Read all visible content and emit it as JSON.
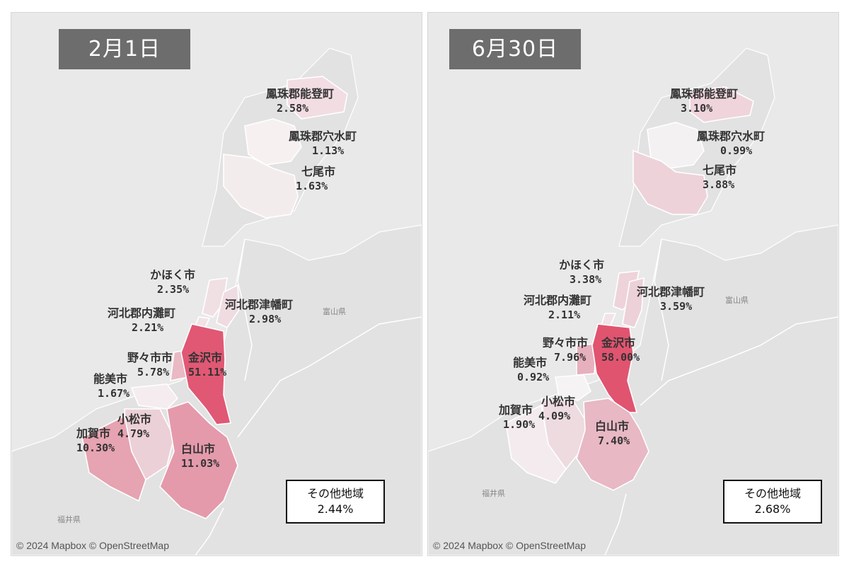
{
  "panels": [
    {
      "date": "2月1日",
      "regions": [
        {
          "name": "鳳珠郡能登町",
          "pct": "2.58%",
          "color": "#f2dde2"
        },
        {
          "name": "鳳珠郡穴水町",
          "pct": "1.13%",
          "color": "#f6f0f1"
        },
        {
          "name": "七尾市",
          "pct": "1.63%",
          "color": "#f3eced"
        },
        {
          "name": "かほく市",
          "pct": "2.35%",
          "color": "#f0e0e4"
        },
        {
          "name": "河北郡津幡町",
          "pct": "2.98%",
          "color": "#efdce1"
        },
        {
          "name": "河北郡内灘町",
          "pct": "2.21%",
          "color": "#f1e2e6"
        },
        {
          "name": "野々市市",
          "pct": "5.78%",
          "color": "#e9b9c4"
        },
        {
          "name": "金沢市",
          "pct": "51.11%",
          "color": "#e05874"
        },
        {
          "name": "能美市",
          "pct": "1.67%",
          "color": "#f4ecee"
        },
        {
          "name": "小松市",
          "pct": "4.79%",
          "color": "#ecd0d7"
        },
        {
          "name": "加賀市",
          "pct": "10.30%",
          "color": "#e6a3b1"
        },
        {
          "name": "白山市",
          "pct": "11.03%",
          "color": "#e49aab"
        }
      ],
      "other_label": "その他地域",
      "other_pct": "2.44%",
      "pref_labels": [
        "富山県",
        "福井県"
      ],
      "attribution": "© 2024 Mapbox © OpenStreetMap"
    },
    {
      "date": "6月30日",
      "regions": [
        {
          "name": "鳳珠郡能登町",
          "pct": "3.10%",
          "color": "#efd4db"
        },
        {
          "name": "鳳珠郡穴水町",
          "pct": "0.99%",
          "color": "#f4f1f2"
        },
        {
          "name": "七尾市",
          "pct": "3.88%",
          "color": "#edd2d9"
        },
        {
          "name": "かほく市",
          "pct": "3.38%",
          "color": "#eed3da"
        },
        {
          "name": "河北郡津幡町",
          "pct": "3.59%",
          "color": "#edd1d8"
        },
        {
          "name": "河北郡内灘町",
          "pct": "2.11%",
          "color": "#f1e3e7"
        },
        {
          "name": "野々市市",
          "pct": "7.96%",
          "color": "#e7b0bd"
        },
        {
          "name": "金沢市",
          "pct": "58.00%",
          "color": "#e0546f"
        },
        {
          "name": "能美市",
          "pct": "0.92%",
          "color": "#f5f3f4"
        },
        {
          "name": "小松市",
          "pct": "4.09%",
          "color": "#eddbe0"
        },
        {
          "name": "加賀市",
          "pct": "1.90%",
          "color": "#f3ebee"
        },
        {
          "name": "白山市",
          "pct": "7.40%",
          "color": "#e8b8c4"
        }
      ],
      "other_label": "その他地域",
      "other_pct": "2.68%",
      "pref_labels": [
        "富山県",
        "福井県"
      ],
      "attribution": "© 2024 Mapbox © OpenStreetMap"
    }
  ]
}
